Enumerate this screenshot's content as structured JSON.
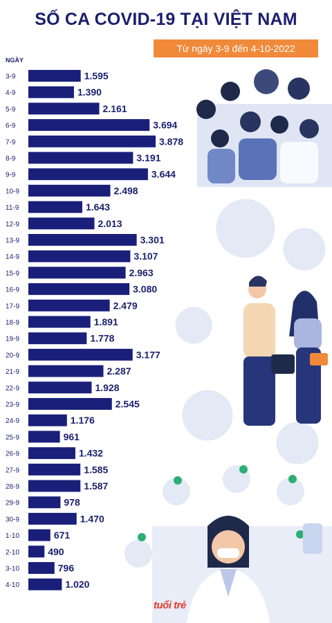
{
  "title": "SỐ CA COVID-19 TẠI VIỆT NAM",
  "subtitle": "Từ ngày 3-9 đến 4-10-2022",
  "brand": "tuổi trẻ",
  "colors": {
    "bar": "#1a1f7a",
    "title": "#1a1f6e",
    "badge": "#f08a3a",
    "decor": "#dde4f2"
  },
  "chart_data": {
    "type": "bar",
    "orientation": "horizontal",
    "ylabel": "NGÀY",
    "xlim": [
      0,
      3878
    ],
    "categories": [
      "3-9",
      "4-9",
      "5-9",
      "6-9",
      "7-9",
      "8-9",
      "9-9",
      "10-9",
      "11-9",
      "12-9",
      "13-9",
      "14-9",
      "15-9",
      "16-9",
      "17-9",
      "18-9",
      "19-9",
      "20-9",
      "21-9",
      "22-9",
      "23-9",
      "24-9",
      "25-9",
      "26-9",
      "27-9",
      "28-9",
      "29-9",
      "30-9",
      "1-10",
      "2-10",
      "3-10",
      "4-10"
    ],
    "values": [
      1595,
      1390,
      2161,
      3694,
      3878,
      3191,
      3644,
      2498,
      1643,
      2013,
      3301,
      3107,
      2963,
      3080,
      2479,
      1891,
      1778,
      3177,
      2287,
      1928,
      2545,
      1176,
      961,
      1432,
      1585,
      1587,
      978,
      1470,
      671,
      490,
      796,
      1020
    ],
    "value_labels": [
      "1.595",
      "1.390",
      "2.161",
      "3.694",
      "3.878",
      "3.191",
      "3.644",
      "2.498",
      "1.643",
      "2.013",
      "3.301",
      "3.107",
      "2.963",
      "3.080",
      "2.479",
      "1.891",
      "1.778",
      "3.177",
      "2.287",
      "1.928",
      "2.545",
      "1.176",
      "961",
      "1.432",
      "1.585",
      "1.587",
      "978",
      "1.470",
      "671",
      "490",
      "796",
      "1.020"
    ]
  }
}
